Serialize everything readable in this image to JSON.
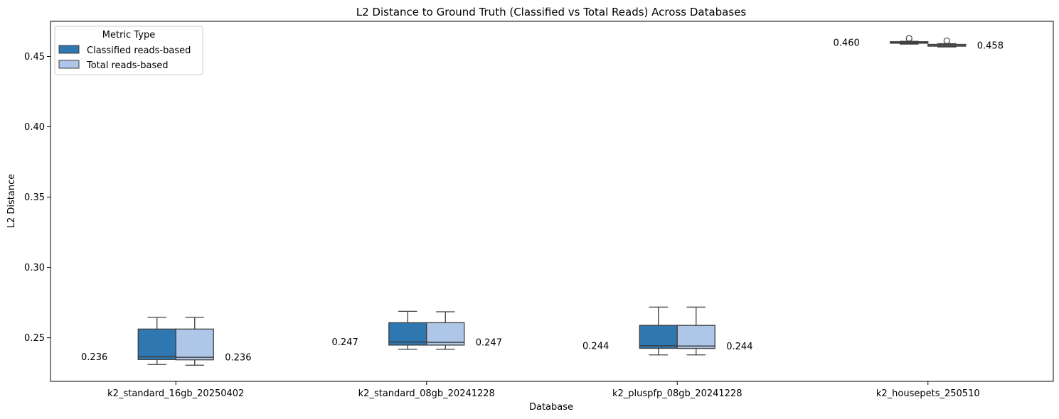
{
  "chart_data": {
    "type": "box",
    "title": "L2 Distance to Ground Truth (Classified vs Total Reads) Across Databases",
    "xlabel": "Database",
    "ylabel": "L2 Distance",
    "ylim": [
      0.219,
      0.475
    ],
    "yticks": [
      0.25,
      0.3,
      0.35,
      0.4,
      0.45
    ],
    "ytick_labels": [
      "0.25",
      "0.30",
      "0.35",
      "0.40",
      "0.45"
    ],
    "categories": [
      "k2_standard_16gb_20250402",
      "k2_standard_08gb_20241228",
      "k2_pluspfp_08gb_20241228",
      "k2_housepets_250510"
    ],
    "grid": false,
    "legend": {
      "title": "Metric Type",
      "placement": "top-left",
      "entries": [
        "Classified reads-based",
        "Total reads-based"
      ]
    },
    "series": [
      {
        "name": "Classified reads-based",
        "color": "#2f77b0",
        "boxes": [
          {
            "whislo": 0.231,
            "q1": 0.2345,
            "med": 0.2365,
            "q3": 0.2562,
            "whishi": 0.2645,
            "fliers": [],
            "label": "0.236"
          },
          {
            "whislo": 0.2418,
            "q1": 0.2448,
            "med": 0.247,
            "q3": 0.2607,
            "whishi": 0.2688,
            "fliers": [],
            "label": "0.247"
          },
          {
            "whislo": 0.2378,
            "q1": 0.2425,
            "med": 0.2443,
            "q3": 0.2588,
            "whishi": 0.2718,
            "fliers": [],
            "label": "0.244"
          },
          {
            "whislo": 0.4588,
            "q1": 0.4594,
            "med": 0.4598,
            "q3": 0.4605,
            "whishi": 0.4608,
            "fliers": [
              0.4629
            ],
            "label": "0.460"
          }
        ]
      },
      {
        "name": "Total reads-based",
        "color": "#aec7e8",
        "boxes": [
          {
            "whislo": 0.2305,
            "q1": 0.2343,
            "med": 0.2361,
            "q3": 0.2562,
            "whishi": 0.2645,
            "fliers": [],
            "label": "0.236"
          },
          {
            "whislo": 0.2418,
            "q1": 0.2448,
            "med": 0.2468,
            "q3": 0.2607,
            "whishi": 0.2685,
            "fliers": [],
            "label": "0.247"
          },
          {
            "whislo": 0.2378,
            "q1": 0.2424,
            "med": 0.2441,
            "q3": 0.2588,
            "whishi": 0.2718,
            "fliers": [],
            "label": "0.244"
          },
          {
            "whislo": 0.4568,
            "q1": 0.4573,
            "med": 0.4578,
            "q3": 0.4586,
            "whishi": 0.4591,
            "fliers": [
              0.4612
            ],
            "label": "0.458"
          }
        ]
      }
    ]
  }
}
